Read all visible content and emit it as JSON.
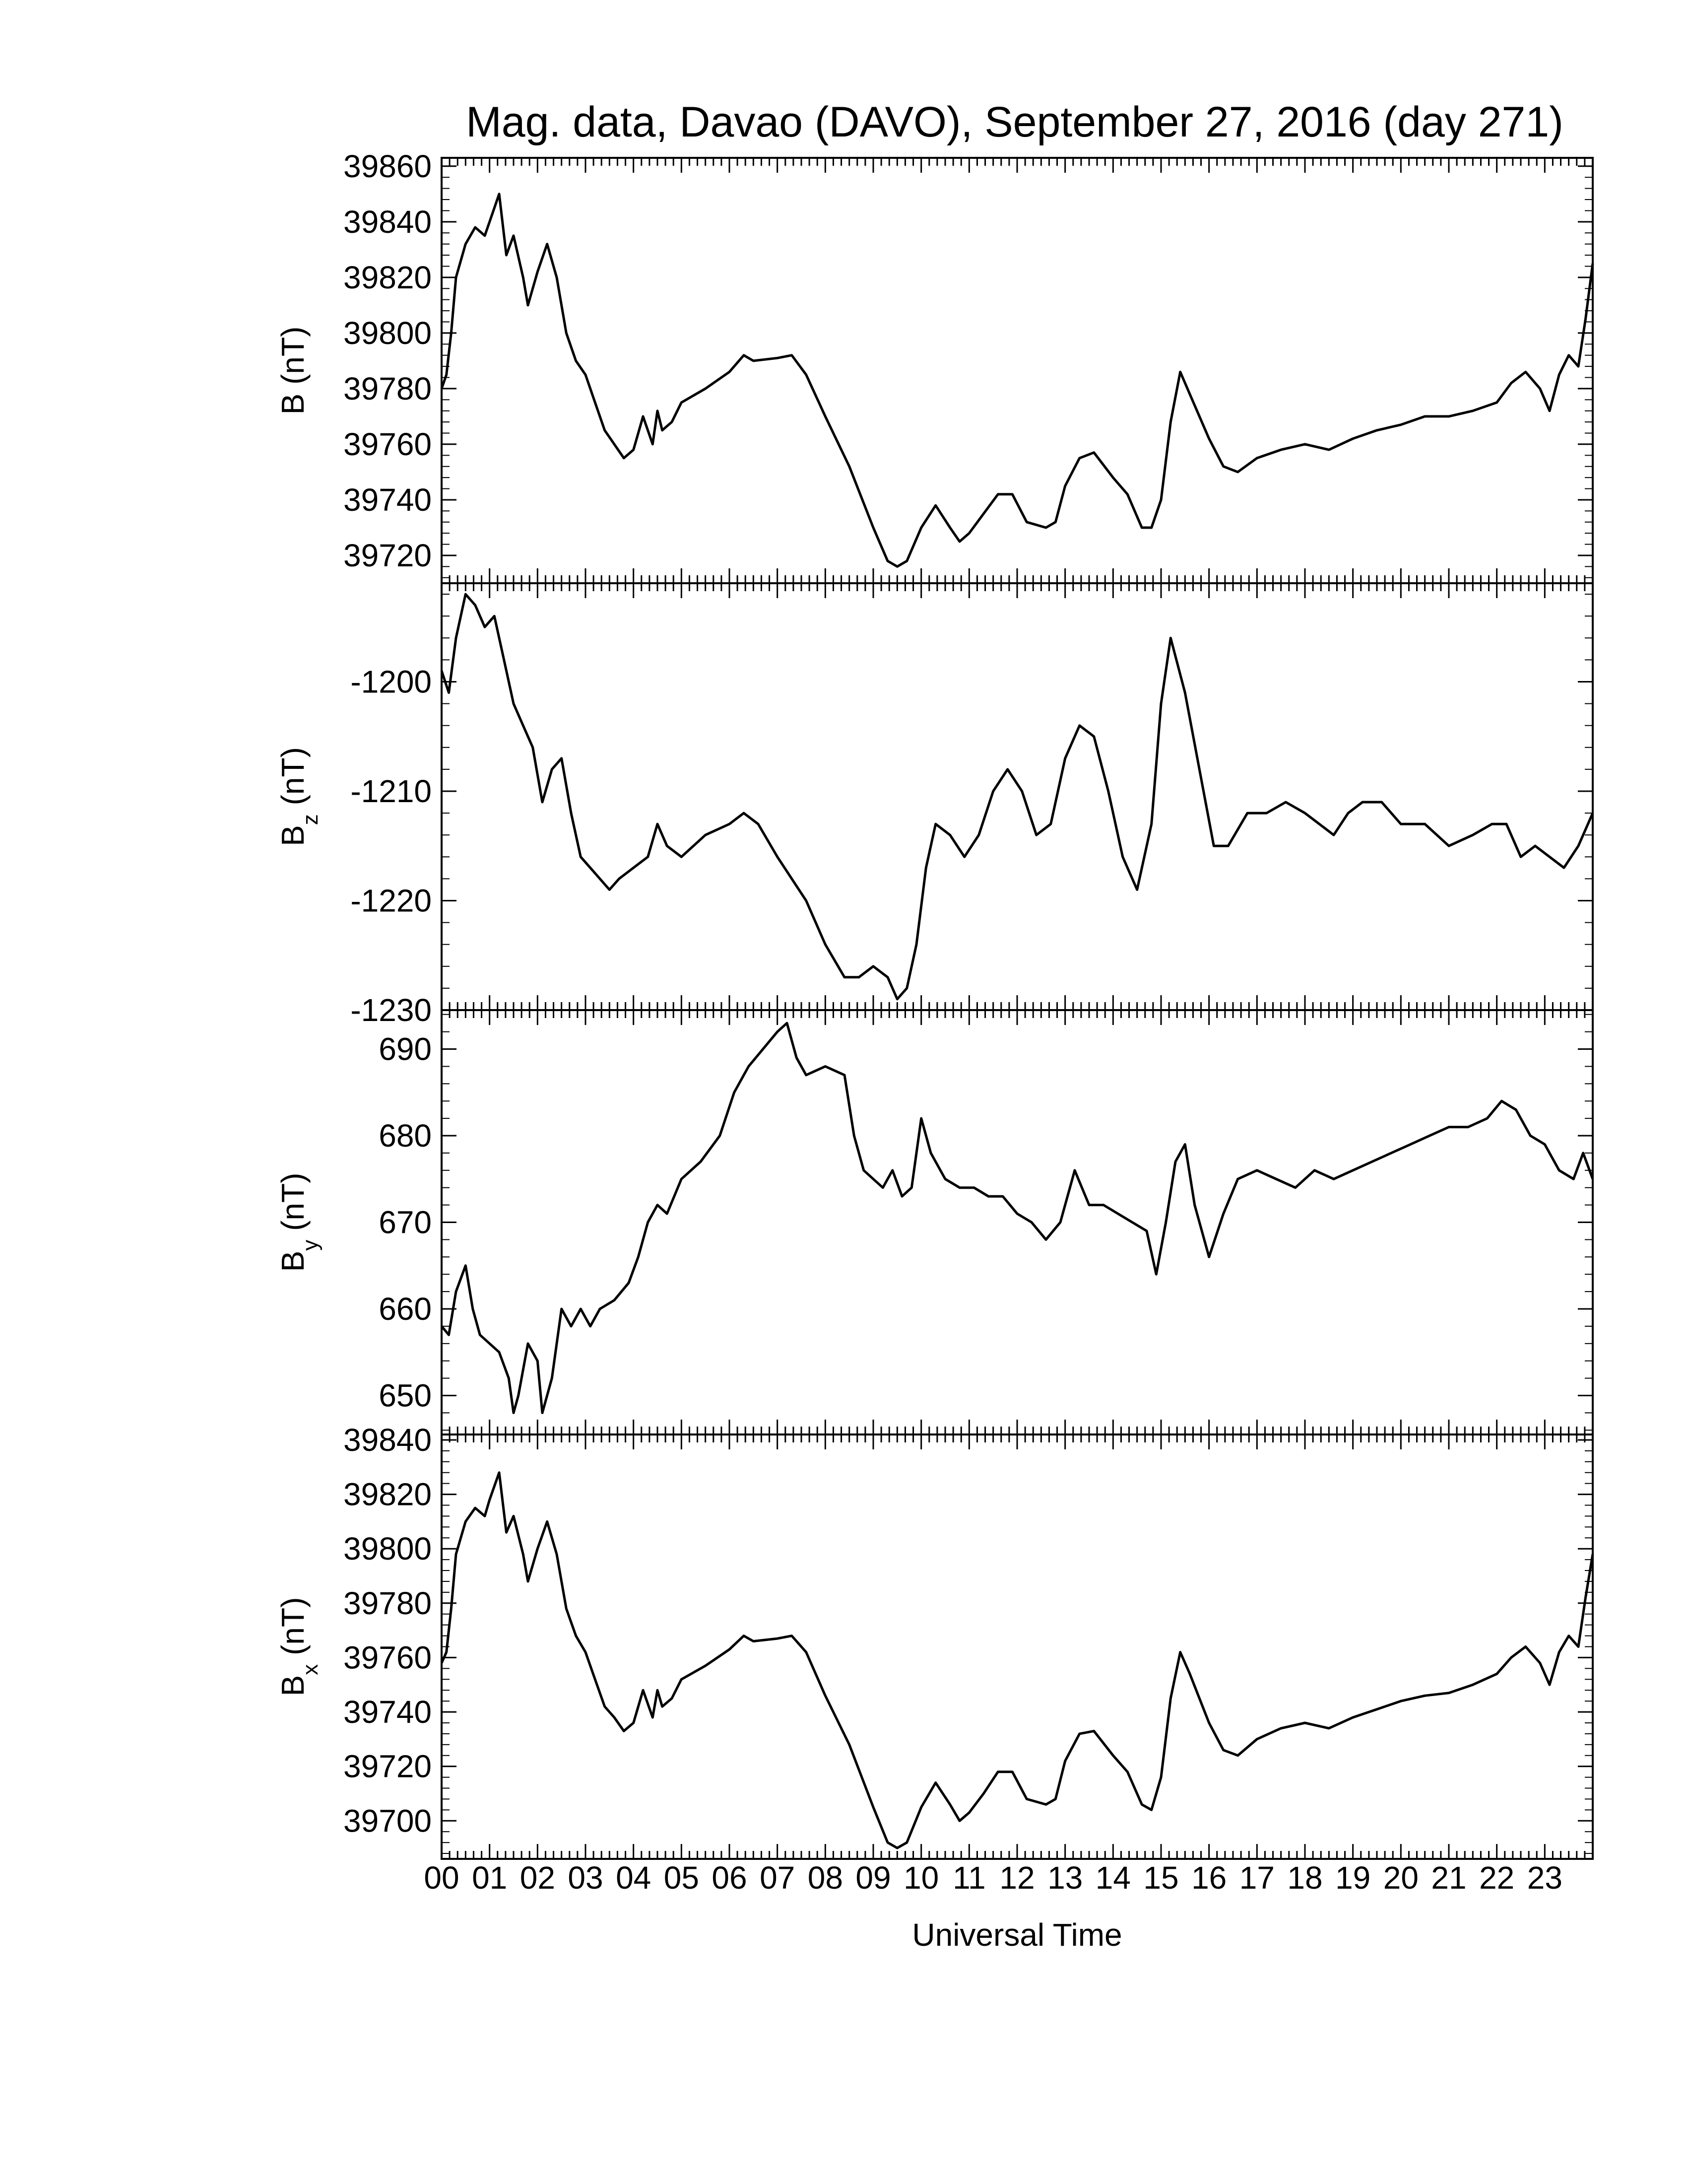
{
  "figure": {
    "title": "Mag. data, Davao (DAVO), September 27, 2016 (day 271)",
    "xlabel": "Universal Time"
  },
  "chart_data": [
    {
      "type": "line",
      "panel": "B",
      "ylabel": "B (nT)",
      "ylim": [
        39710,
        39863
      ],
      "yticks": [
        39720,
        39740,
        39760,
        39780,
        39800,
        39820,
        39840,
        39860
      ],
      "xlim": [
        0,
        24
      ],
      "xticks": [
        "00",
        "01",
        "02",
        "03",
        "04",
        "05",
        "06",
        "07",
        "08",
        "09",
        "10",
        "11",
        "12",
        "13",
        "14",
        "15",
        "16",
        "17",
        "18",
        "19",
        "20",
        "21",
        "22",
        "23"
      ],
      "series": [
        {
          "x": [
            0.0,
            0.1,
            0.2,
            0.3,
            0.5,
            0.7,
            0.9,
            1.0,
            1.2,
            1.35,
            1.5,
            1.7,
            1.8,
            2.0,
            2.2,
            2.4,
            2.6,
            2.8,
            3.0,
            3.2,
            3.4,
            3.6,
            3.8,
            4.0,
            4.2,
            4.4,
            4.5,
            4.6,
            4.8,
            5.0,
            5.5,
            6.0,
            6.3,
            6.5,
            7.0,
            7.3,
            7.6,
            8.0,
            8.5,
            9.0,
            9.3,
            9.5,
            9.7,
            10.0,
            10.3,
            10.6,
            10.8,
            11.0,
            11.3,
            11.6,
            11.9,
            12.2,
            12.6,
            12.8,
            13.0,
            13.3,
            13.6,
            14.0,
            14.3,
            14.6,
            14.8,
            15.0,
            15.2,
            15.4,
            15.6,
            16.0,
            16.3,
            16.6,
            17.0,
            17.5,
            18.0,
            18.5,
            19.0,
            19.5,
            20.0,
            20.5,
            21.0,
            21.5,
            22.0,
            22.3,
            22.6,
            22.9,
            23.1,
            23.3,
            23.5,
            23.7,
            23.85,
            24.0
          ],
          "y": [
            39780,
            39785,
            39800,
            39820,
            39832,
            39838,
            39835,
            39840,
            39850,
            39828,
            39835,
            39820,
            39810,
            39822,
            39832,
            39820,
            39800,
            39790,
            39785,
            39775,
            39765,
            39760,
            39755,
            39758,
            39770,
            39760,
            39772,
            39765,
            39768,
            39775,
            39780,
            39786,
            39792,
            39790,
            39791,
            39792,
            39785,
            39770,
            39752,
            39730,
            39718,
            39716,
            39718,
            39730,
            39738,
            39730,
            39725,
            39728,
            39735,
            39742,
            39742,
            39732,
            39730,
            39732,
            39745,
            39755,
            39757,
            39748,
            39742,
            39730,
            39730,
            39740,
            39768,
            39786,
            39778,
            39762,
            39752,
            39750,
            39755,
            39758,
            39760,
            39758,
            39762,
            39765,
            39767,
            39770,
            39770,
            39772,
            39775,
            39782,
            39786,
            39780,
            39772,
            39785,
            39792,
            39788,
            39805,
            39825
          ]
        }
      ]
    },
    {
      "type": "line",
      "panel": "Bz",
      "ylabel": "B",
      "ylabel_sub": "z",
      "ylabel_unit": "(nT)",
      "ylim": [
        -1230,
        -1191
      ],
      "yticks": [
        -1230,
        -1220,
        -1210,
        -1200
      ],
      "xlim": [
        0,
        24
      ],
      "series": [
        {
          "x": [
            0.0,
            0.15,
            0.3,
            0.5,
            0.7,
            0.9,
            1.1,
            1.3,
            1.5,
            1.7,
            1.9,
            2.1,
            2.3,
            2.5,
            2.7,
            2.9,
            3.1,
            3.3,
            3.5,
            3.7,
            4.0,
            4.3,
            4.5,
            4.7,
            5.0,
            5.5,
            6.0,
            6.3,
            6.6,
            7.0,
            7.3,
            7.6,
            8.0,
            8.4,
            8.7,
            9.0,
            9.3,
            9.5,
            9.7,
            9.9,
            10.1,
            10.3,
            10.6,
            10.9,
            11.2,
            11.5,
            11.8,
            12.1,
            12.4,
            12.7,
            13.0,
            13.3,
            13.6,
            13.9,
            14.2,
            14.5,
            14.8,
            15.0,
            15.2,
            15.5,
            15.8,
            16.1,
            16.4,
            16.8,
            17.2,
            17.6,
            18.0,
            18.3,
            18.6,
            18.9,
            19.2,
            19.6,
            20.0,
            20.5,
            21.0,
            21.5,
            21.9,
            22.2,
            22.5,
            22.8,
            23.1,
            23.4,
            23.7,
            24.0
          ],
          "y": [
            -1199,
            -1201,
            -1196,
            -1192,
            -1193,
            -1195,
            -1194,
            -1198,
            -1202,
            -1204,
            -1206,
            -1211,
            -1208,
            -1207,
            -1212,
            -1216,
            -1217,
            -1218,
            -1219,
            -1218,
            -1217,
            -1216,
            -1213,
            -1215,
            -1216,
            -1214,
            -1213,
            -1212,
            -1213,
            -1216,
            -1218,
            -1220,
            -1224,
            -1227,
            -1227,
            -1226,
            -1227,
            -1229,
            -1228,
            -1224,
            -1217,
            -1213,
            -1214,
            -1216,
            -1214,
            -1210,
            -1208,
            -1210,
            -1214,
            -1213,
            -1207,
            -1204,
            -1205,
            -1210,
            -1216,
            -1219,
            -1213,
            -1202,
            -1196,
            -1201,
            -1208,
            -1215,
            -1215,
            -1212,
            -1212,
            -1211,
            -1212,
            -1213,
            -1214,
            -1212,
            -1211,
            -1211,
            -1213,
            -1213,
            -1215,
            -1214,
            -1213,
            -1213,
            -1216,
            -1215,
            -1216,
            -1217,
            -1215,
            -1212
          ]
        }
      ]
    },
    {
      "type": "line",
      "panel": "By",
      "ylabel": "B",
      "ylabel_sub": "y",
      "ylabel_unit": "(nT)",
      "ylim": [
        645.5,
        694.5
      ],
      "yticks": [
        650,
        660,
        670,
        680,
        690
      ],
      "xlim": [
        0,
        24
      ],
      "series": [
        {
          "x": [
            0.0,
            0.15,
            0.3,
            0.5,
            0.65,
            0.8,
            1.0,
            1.2,
            1.4,
            1.5,
            1.6,
            1.8,
            2.0,
            2.1,
            2.3,
            2.5,
            2.7,
            2.9,
            3.1,
            3.3,
            3.6,
            3.9,
            4.1,
            4.3,
            4.5,
            4.7,
            5.0,
            5.4,
            5.8,
            6.1,
            6.4,
            6.7,
            7.0,
            7.2,
            7.4,
            7.6,
            8.0,
            8.4,
            8.6,
            8.8,
            9.0,
            9.2,
            9.4,
            9.6,
            9.8,
            10.0,
            10.2,
            10.5,
            10.8,
            11.1,
            11.4,
            11.7,
            12.0,
            12.3,
            12.6,
            12.9,
            13.2,
            13.5,
            13.8,
            14.1,
            14.4,
            14.7,
            14.9,
            15.1,
            15.3,
            15.5,
            15.7,
            16.0,
            16.3,
            16.6,
            17.0,
            17.4,
            17.8,
            18.2,
            18.6,
            19.0,
            19.4,
            19.8,
            20.2,
            20.6,
            21.0,
            21.4,
            21.8,
            22.1,
            22.4,
            22.7,
            23.0,
            23.3,
            23.6,
            23.8,
            24.0
          ],
          "y": [
            658,
            657,
            662,
            665,
            660,
            657,
            656,
            655,
            652,
            648,
            650,
            656,
            654,
            648,
            652,
            660,
            658,
            660,
            658,
            660,
            661,
            663,
            666,
            670,
            672,
            671,
            675,
            677,
            680,
            685,
            688,
            690,
            692,
            693,
            689,
            687,
            688,
            687,
            680,
            676,
            675,
            674,
            676,
            673,
            674,
            682,
            678,
            675,
            674,
            674,
            673,
            673,
            671,
            670,
            668,
            670,
            676,
            672,
            672,
            671,
            670,
            669,
            664,
            670,
            677,
            679,
            672,
            666,
            671,
            675,
            676,
            675,
            674,
            676,
            675,
            676,
            677,
            678,
            679,
            680,
            681,
            681,
            682,
            684,
            683,
            680,
            679,
            676,
            675,
            678,
            675
          ]
        }
      ]
    },
    {
      "type": "line",
      "panel": "Bx",
      "ylabel": "B",
      "ylabel_sub": "x",
      "ylabel_unit": "(nT)",
      "ylim": [
        39686,
        39842
      ],
      "yticks": [
        39700,
        39720,
        39740,
        39760,
        39780,
        39800,
        39820,
        39840
      ],
      "xlim": [
        0,
        24
      ],
      "series": [
        {
          "x": [
            0.0,
            0.1,
            0.2,
            0.3,
            0.5,
            0.7,
            0.9,
            1.0,
            1.2,
            1.35,
            1.5,
            1.7,
            1.8,
            2.0,
            2.2,
            2.4,
            2.6,
            2.8,
            3.0,
            3.2,
            3.4,
            3.6,
            3.8,
            4.0,
            4.2,
            4.4,
            4.5,
            4.6,
            4.8,
            5.0,
            5.5,
            6.0,
            6.3,
            6.5,
            7.0,
            7.3,
            7.6,
            8.0,
            8.5,
            9.0,
            9.3,
            9.5,
            9.7,
            10.0,
            10.3,
            10.6,
            10.8,
            11.0,
            11.3,
            11.6,
            11.9,
            12.2,
            12.6,
            12.8,
            13.0,
            13.3,
            13.6,
            14.0,
            14.3,
            14.6,
            14.8,
            15.0,
            15.2,
            15.4,
            15.6,
            16.0,
            16.3,
            16.6,
            17.0,
            17.5,
            18.0,
            18.5,
            19.0,
            19.5,
            20.0,
            20.5,
            21.0,
            21.5,
            22.0,
            22.3,
            22.6,
            22.9,
            23.1,
            23.3,
            23.5,
            23.7,
            23.85,
            24.0
          ],
          "y": [
            39758,
            39762,
            39778,
            39798,
            39810,
            39815,
            39812,
            39818,
            39828,
            39806,
            39812,
            39798,
            39788,
            39800,
            39810,
            39798,
            39778,
            39768,
            39762,
            39752,
            39742,
            39738,
            39733,
            39736,
            39748,
            39738,
            39748,
            39742,
            39745,
            39752,
            39757,
            39763,
            39768,
            39766,
            39767,
            39768,
            39762,
            39746,
            39728,
            39705,
            39692,
            39690,
            39692,
            39705,
            39714,
            39706,
            39700,
            39703,
            39710,
            39718,
            39718,
            39708,
            39706,
            39708,
            39722,
            39732,
            39733,
            39724,
            39718,
            39706,
            39704,
            39716,
            39745,
            39762,
            39754,
            39736,
            39726,
            39724,
            39730,
            39734,
            39736,
            39734,
            39738,
            39741,
            39744,
            39746,
            39747,
            39750,
            39754,
            39760,
            39764,
            39758,
            39750,
            39762,
            39768,
            39764,
            39782,
            39798
          ]
        }
      ]
    }
  ]
}
